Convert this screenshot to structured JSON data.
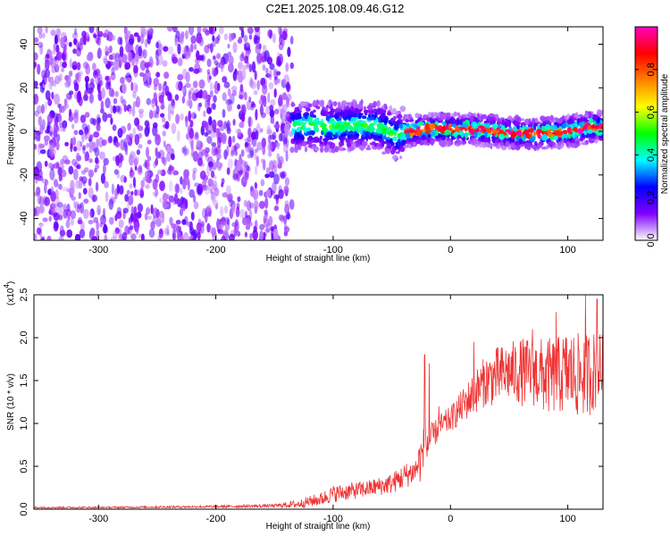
{
  "title": "C2E1.2025.108.09.46.G12",
  "chart_data": [
    {
      "type": "heatmap",
      "xlabel": "Height of straight line (km)",
      "ylabel": "Frequency (Hz)",
      "xlim": [
        -355,
        130
      ],
      "ylim": [
        -50,
        48
      ],
      "xticks": [
        -300,
        -200,
        -100,
        0,
        100
      ],
      "yticks": [
        -40,
        -20,
        0,
        20,
        40
      ],
      "noise_region": [
        -355,
        -135
      ],
      "signal_region": [
        -135,
        130
      ],
      "ridge": {
        "x": [
          -135,
          -120,
          -100,
          -80,
          -60,
          -45,
          -40,
          -20,
          0,
          20,
          40,
          60,
          80,
          100,
          110,
          120,
          130
        ],
        "y": [
          2,
          3,
          2,
          3,
          2,
          -2,
          0,
          1,
          1,
          1,
          0,
          -1,
          -1,
          0,
          1,
          2,
          2
        ]
      },
      "colorbar": {
        "label": "Normalized spectral amplitude",
        "range": [
          0,
          1
        ],
        "ticks": [
          0.0,
          0.2,
          0.4,
          0.6,
          0.8
        ],
        "tick_labels": [
          "0.0",
          "0.2",
          "0.4",
          "0.6",
          "0.8"
        ],
        "colors": [
          "#ffffff",
          "#8000ff",
          "#0000ff",
          "#00ffff",
          "#00ff00",
          "#ffff00",
          "#ff8000",
          "#ff0000",
          "#ff00c0"
        ]
      },
      "grid": false
    },
    {
      "type": "line",
      "xlabel": "Height of straight line (km)",
      "ylabel": "SNR (10 * v/v)",
      "scale_label": "(x10",
      "scale_exp": "4",
      "scale_close": ")",
      "xlim": [
        -355,
        130
      ],
      "ylim": [
        0,
        2.5
      ],
      "xticks": [
        -300,
        -200,
        -100,
        0,
        100
      ],
      "yticks": [
        0.0,
        0.5,
        1.0,
        1.5,
        2.0,
        2.5
      ],
      "ytick_labels": [
        "0.0",
        "0.5",
        "1.0",
        "1.5",
        "2.0",
        "2.5"
      ],
      "series": [
        {
          "color": "#ee3333",
          "envelope_x": [
            -355,
            -300,
            -200,
            -150,
            -130,
            -110,
            -100,
            -90,
            -70,
            -50,
            -40,
            -30,
            -25,
            -20,
            -15,
            -10,
            0,
            10,
            20,
            30,
            40,
            50,
            60,
            70,
            80,
            90,
            100,
            110,
            120,
            130
          ],
          "envelope_mid": [
            0.02,
            0.02,
            0.03,
            0.04,
            0.06,
            0.12,
            0.18,
            0.2,
            0.24,
            0.3,
            0.38,
            0.45,
            0.6,
            0.75,
            0.85,
            0.95,
            1.05,
            1.2,
            1.35,
            1.5,
            1.55,
            1.6,
            1.6,
            1.6,
            1.55,
            1.55,
            1.6,
            1.55,
            1.6,
            1.65
          ],
          "envelope_amp": [
            0.01,
            0.01,
            0.015,
            0.02,
            0.05,
            0.08,
            0.1,
            0.1,
            0.1,
            0.12,
            0.15,
            0.15,
            0.3,
            0.3,
            0.15,
            0.15,
            0.15,
            0.2,
            0.25,
            0.3,
            0.35,
            0.35,
            0.4,
            0.4,
            0.45,
            0.45,
            0.5,
            0.5,
            0.5,
            0.4
          ],
          "peaks": [
            [
              -22,
              1.8
            ],
            [
              -18,
              1.7
            ],
            [
              -10,
              1.2
            ],
            [
              20,
              1.95
            ],
            [
              70,
              2.1
            ],
            [
              90,
              2.3
            ],
            [
              115,
              2.5
            ],
            [
              125,
              2.45
            ]
          ]
        }
      ],
      "grid": false
    }
  ]
}
